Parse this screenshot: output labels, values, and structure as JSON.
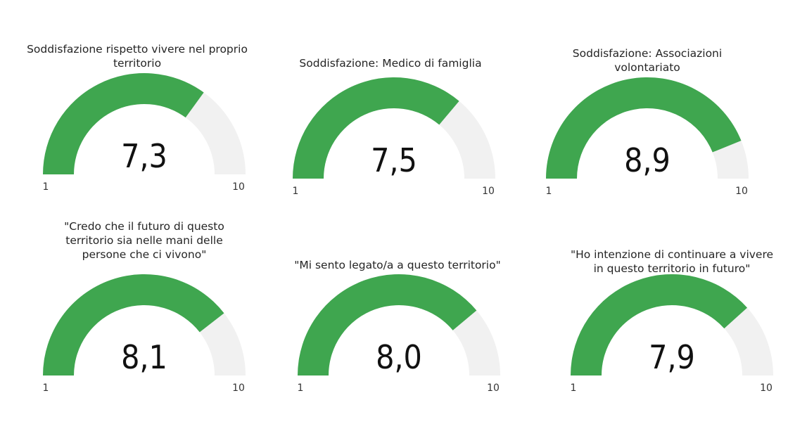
{
  "chart_data": [
    {
      "type": "gauge",
      "title": "Soddisfazione rispetto vivere nel proprio territorio",
      "value": 7.3,
      "value_label": "7,3",
      "min": 1,
      "max": 10,
      "min_label": "1",
      "max_label": "10"
    },
    {
      "type": "gauge",
      "title": "Soddisfazione: Medico di famiglia",
      "value": 7.5,
      "value_label": "7,5",
      "min": 1,
      "max": 10,
      "min_label": "1",
      "max_label": "10"
    },
    {
      "type": "gauge",
      "title": "Soddisfazione: Associazioni volontariato",
      "value": 8.9,
      "value_label": "8,9",
      "min": 1,
      "max": 10,
      "min_label": "1",
      "max_label": "10"
    },
    {
      "type": "gauge",
      "title": "\"Credo che il futuro di questo territorio sia nelle mani delle persone che ci vivono\"",
      "value": 8.1,
      "value_label": "8,1",
      "min": 1,
      "max": 10,
      "min_label": "1",
      "max_label": "10"
    },
    {
      "type": "gauge",
      "title": "\"Mi sento legato/a a questo territorio\"",
      "value": 8.0,
      "value_label": "8,0",
      "min": 1,
      "max": 10,
      "min_label": "1",
      "max_label": "10"
    },
    {
      "type": "gauge",
      "title": "\"Ho intenzione di continuare a vivere in questo territorio in futuro\"",
      "value": 7.9,
      "value_label": "7,9",
      "min": 1,
      "max": 10,
      "min_label": "1",
      "max_label": "10"
    }
  ],
  "colors": {
    "fill": "#3fa64f",
    "track": "#f1f1f1"
  }
}
